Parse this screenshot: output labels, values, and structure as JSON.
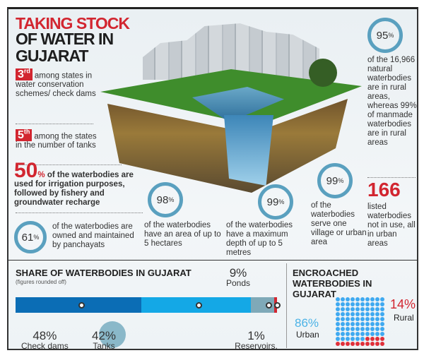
{
  "title": {
    "line1": "TAKING STOCK",
    "line2": "OF WATER IN GUJARAT"
  },
  "facts": {
    "rank1": {
      "rank": "3",
      "suffix": "rd",
      "text": "among states in water conservation schemes/ check dams"
    },
    "rank2": {
      "rank": "5",
      "suffix": "th",
      "text": "among the states in the number of tanks"
    },
    "irrigation": {
      "value": "50",
      "unit": "%",
      "text": "of the waterbodies are used for irrigation purposes, followed by fishery and groundwater recharge"
    },
    "panchayats": {
      "value": "61",
      "unit": "%",
      "percent": 61,
      "text": "of the waterbodies are owned and maintained by panchayats"
    },
    "area": {
      "value": "98",
      "unit": "%",
      "percent": 98,
      "text": "of the waterbodies have an area of up to 5 hectares"
    },
    "depth": {
      "value": "99",
      "unit": "%",
      "percent": 99,
      "text": "of the waterbodies have a maximum depth of up to 5 metres"
    },
    "serve": {
      "value": "99",
      "unit": "%",
      "percent": 99,
      "text": "of the waterbodies serve one village or urban area"
    },
    "rural": {
      "value": "95",
      "unit": "%",
      "percent": 95,
      "text": "of the 16,966 natural waterbodies are in rural areas, whereas 99% of manmade waterbodies are in rural areas"
    },
    "unused": {
      "value": "166",
      "text": "listed waterbodies not in use, all in urban areas"
    }
  },
  "share": {
    "title": "SHARE OF WATERBODIES IN GUJARAT",
    "note": "(figures rounded off)"
  },
  "encroached": {
    "title": "ENCROACHED WATERBODIES IN GUJARAT"
  },
  "colors": {
    "accent": "#d22630",
    "checkdams": "#0b6db5",
    "tanks": "#14a8e6",
    "ponds": "#7fa9b8",
    "reservoirs": "#d22630",
    "ring": "#5aa0bf"
  },
  "chart_data": [
    {
      "type": "bar",
      "title": "SHARE OF WATERBODIES IN GUJARAT",
      "subtitle": "(figures rounded off)",
      "stacked": true,
      "categories": [
        "Check dams",
        "Tanks",
        "Ponds",
        "Reservoirs, Lakes"
      ],
      "values": [
        48,
        42,
        9,
        1
      ],
      "labels": [
        "48%",
        "42%",
        "9%",
        "1%"
      ]
    },
    {
      "type": "pie",
      "title": "ENCROACHED WATERBODIES IN GUJARAT",
      "style": "dot grid",
      "categories": [
        "Urban",
        "Rural"
      ],
      "values": [
        86,
        14
      ],
      "labels": [
        "86%",
        "14%"
      ]
    }
  ]
}
